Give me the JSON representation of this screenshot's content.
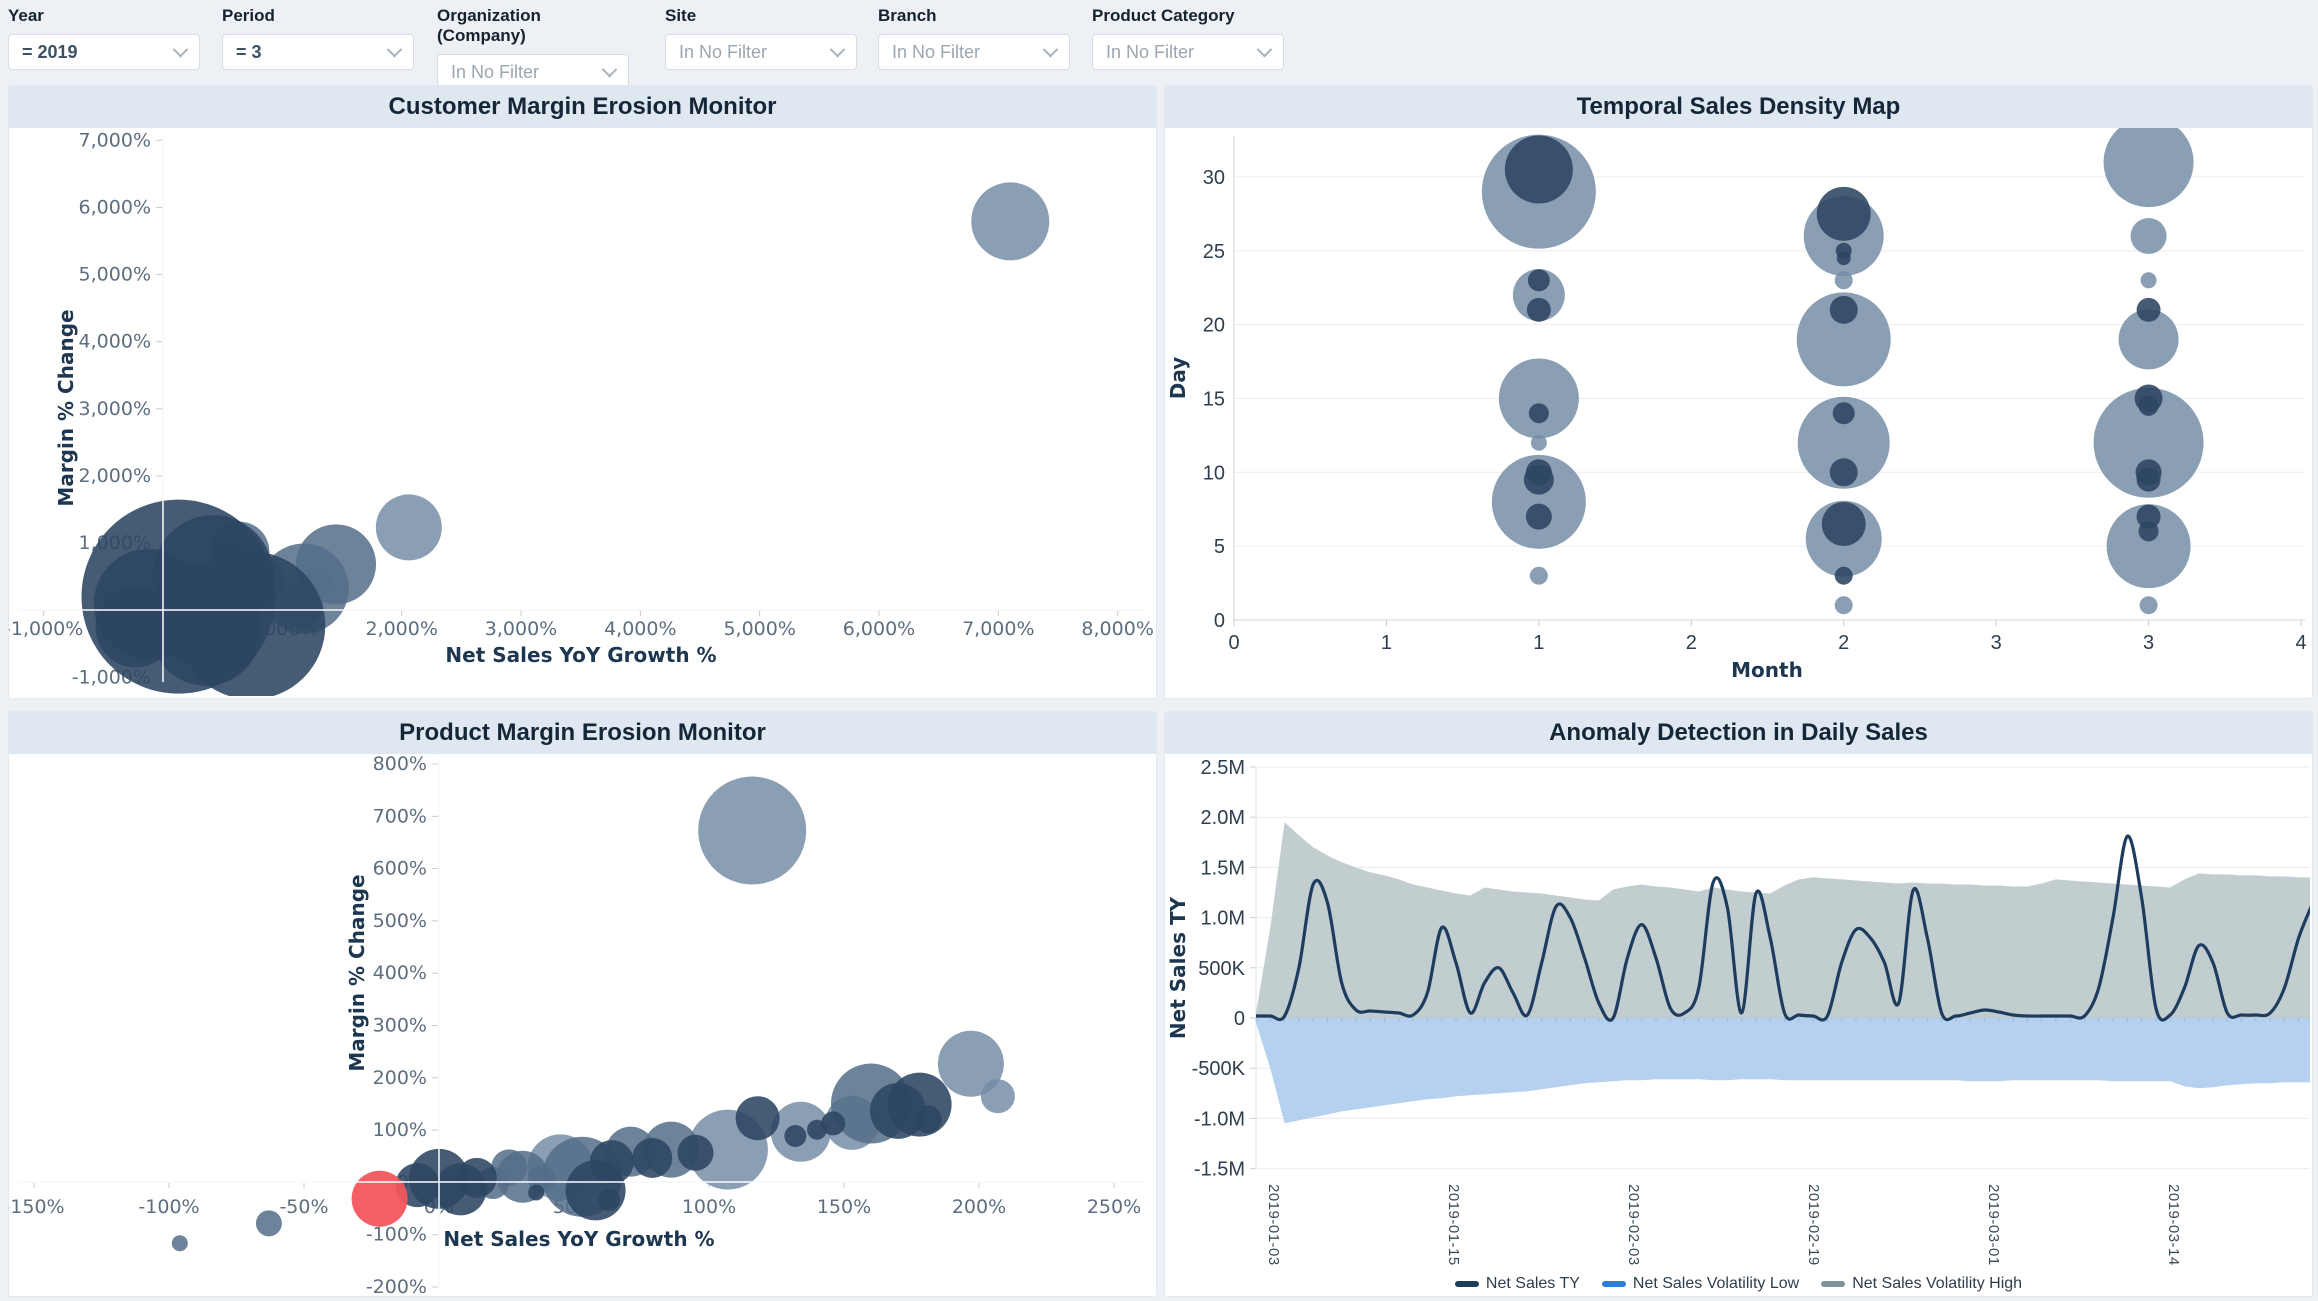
{
  "filters": [
    {
      "label": "Year",
      "value": "= 2019"
    },
    {
      "label": "Period",
      "value": "= 3"
    },
    {
      "label": "Organization (Company)",
      "value": "In No Filter"
    },
    {
      "label": "Site",
      "value": "In No Filter"
    },
    {
      "label": "Branch",
      "value": "In No Filter"
    },
    {
      "label": "Product Category",
      "value": "In No Filter"
    }
  ],
  "colors": {
    "page_bg": "#edf1f6",
    "header_bg": "#dfe8f1",
    "bubble_light": "#718aa3",
    "bubble_mid": "#546d88",
    "bubble_dark": "#2c4662",
    "bubble_red": "#f4555c",
    "line": "#1d3c5e",
    "band_high": "#b3c0c4",
    "band_low": "#a9c9ed",
    "legend_blue": "#2e7fd6",
    "legend_gray": "#7e9399"
  },
  "chart_data": [
    {
      "type": "scatter",
      "title": "Customer Margin Erosion Monitor",
      "xlabel": "Net Sales YoY Growth %",
      "ylabel": "Margin % Change",
      "xlim": [
        -1000,
        8000
      ],
      "ylim": [
        -1000,
        7000
      ],
      "xticks": [
        "-1,000%",
        "0%",
        "1,000%",
        "2,000%",
        "3,000%",
        "4,000%",
        "5,000%",
        "6,000%",
        "7,000%",
        "8,000%"
      ],
      "yticks": [
        "7,000%",
        "6,000%",
        "5,000%",
        "4,000%",
        "3,000%",
        "2,000%",
        "1,000%",
        "0%",
        "-1,000%"
      ],
      "grid": false,
      "bubbles": [
        {
          "x": 2060,
          "y": 1230,
          "r": 33,
          "c": "light"
        },
        {
          "x": 1295,
          "y": 425,
          "r": 14,
          "c": "light"
        },
        {
          "x": 7100,
          "y": 5790,
          "r": 39,
          "c": "light"
        },
        {
          "x": 640,
          "y": 870,
          "r": 30,
          "c": "mid"
        },
        {
          "x": 1450,
          "y": 680,
          "r": 40,
          "c": "mid"
        },
        {
          "x": 1180,
          "y": 320,
          "r": 45,
          "c": "mid"
        },
        {
          "x": 800,
          "y": 430,
          "r": 26,
          "c": "mid"
        },
        {
          "x": 1160,
          "y": 70,
          "r": 22,
          "c": "mid"
        },
        {
          "x": 130,
          "y": 200,
          "r": 97,
          "c": "dark"
        },
        {
          "x": 740,
          "y": -230,
          "r": 74,
          "c": "dark"
        },
        {
          "x": -120,
          "y": 90,
          "r": 55,
          "c": "dark"
        },
        {
          "x": 420,
          "y": 520,
          "r": 60,
          "c": "dark"
        },
        {
          "x": 540,
          "y": 770,
          "r": 18,
          "c": "dark"
        },
        {
          "x": -230,
          "y": -260,
          "r": 40,
          "c": "dark"
        },
        {
          "x": 300,
          "y": -60,
          "r": 50,
          "c": "dark"
        },
        {
          "x": 360,
          "y": -310,
          "r": 55,
          "c": "dark"
        }
      ]
    },
    {
      "type": "scatter",
      "title": "Temporal Sales Density Map",
      "xlabel": "Month",
      "ylabel": "Day",
      "xlim": [
        0,
        4
      ],
      "ylim": [
        0,
        33
      ],
      "xticks": [
        "0",
        "1",
        "1",
        "2",
        "2",
        "3",
        "3",
        "4"
      ],
      "yticks": [
        "0",
        "5",
        "10",
        "15",
        "20",
        "25",
        "30"
      ],
      "grid": true,
      "bubbles": [
        {
          "x": 1,
          "y": 29,
          "r": 57,
          "c": "light"
        },
        {
          "x": 1,
          "y": 30.5,
          "r": 34,
          "c": "dark"
        },
        {
          "x": 1,
          "y": 22,
          "r": 26,
          "c": "light"
        },
        {
          "x": 1,
          "y": 23,
          "r": 11,
          "c": "dark"
        },
        {
          "x": 1,
          "y": 21,
          "r": 12,
          "c": "dark"
        },
        {
          "x": 1,
          "y": 15,
          "r": 40,
          "c": "light"
        },
        {
          "x": 1,
          "y": 14,
          "r": 10,
          "c": "dark"
        },
        {
          "x": 1,
          "y": 12,
          "r": 8,
          "c": "light"
        },
        {
          "x": 1,
          "y": 8,
          "r": 47,
          "c": "light"
        },
        {
          "x": 1,
          "y": 10,
          "r": 13,
          "c": "dark"
        },
        {
          "x": 1,
          "y": 9.5,
          "r": 15,
          "c": "dark"
        },
        {
          "x": 1,
          "y": 7,
          "r": 13,
          "c": "dark"
        },
        {
          "x": 1,
          "y": 3,
          "r": 9,
          "c": "light"
        },
        {
          "x": 2,
          "y": 26,
          "r": 40,
          "c": "light"
        },
        {
          "x": 2,
          "y": 27.5,
          "r": 27,
          "c": "dark"
        },
        {
          "x": 2,
          "y": 25,
          "r": 8,
          "c": "dark"
        },
        {
          "x": 2,
          "y": 24.5,
          "r": 7,
          "c": "dark"
        },
        {
          "x": 2,
          "y": 23,
          "r": 9,
          "c": "light"
        },
        {
          "x": 2,
          "y": 19,
          "r": 47,
          "c": "light"
        },
        {
          "x": 2,
          "y": 21,
          "r": 14,
          "c": "dark"
        },
        {
          "x": 2,
          "y": 12,
          "r": 46,
          "c": "light"
        },
        {
          "x": 2,
          "y": 14,
          "r": 11,
          "c": "dark"
        },
        {
          "x": 2,
          "y": 10,
          "r": 14,
          "c": "dark"
        },
        {
          "x": 2,
          "y": 5.5,
          "r": 38,
          "c": "light"
        },
        {
          "x": 2,
          "y": 6.5,
          "r": 22,
          "c": "dark"
        },
        {
          "x": 2,
          "y": 3,
          "r": 9,
          "c": "dark"
        },
        {
          "x": 2,
          "y": 1,
          "r": 9,
          "c": "light"
        },
        {
          "x": 3,
          "y": 31,
          "r": 45,
          "c": "light"
        },
        {
          "x": 3,
          "y": 26,
          "r": 18,
          "c": "light"
        },
        {
          "x": 3,
          "y": 23,
          "r": 8,
          "c": "light"
        },
        {
          "x": 3,
          "y": 19,
          "r": 30,
          "c": "light"
        },
        {
          "x": 3,
          "y": 21,
          "r": 12,
          "c": "dark"
        },
        {
          "x": 3,
          "y": 12,
          "r": 55,
          "c": "light"
        },
        {
          "x": 3,
          "y": 15,
          "r": 14,
          "c": "dark"
        },
        {
          "x": 3,
          "y": 14.5,
          "r": 10,
          "c": "dark"
        },
        {
          "x": 3,
          "y": 10,
          "r": 13,
          "c": "dark"
        },
        {
          "x": 3,
          "y": 9.5,
          "r": 12,
          "c": "dark"
        },
        {
          "x": 3,
          "y": 5,
          "r": 42,
          "c": "light"
        },
        {
          "x": 3,
          "y": 7,
          "r": 12,
          "c": "dark"
        },
        {
          "x": 3,
          "y": 6,
          "r": 10,
          "c": "dark"
        },
        {
          "x": 3,
          "y": 1,
          "r": 9,
          "c": "light"
        }
      ]
    },
    {
      "type": "scatter",
      "title": "Product Margin Erosion Monitor",
      "xlabel": "Net Sales YoY Growth %",
      "ylabel": "Margin % Change",
      "xlim": [
        -150,
        250
      ],
      "ylim": [
        -200,
        800
      ],
      "xticks": [
        "-150%",
        "-100%",
        "-50%",
        "0%",
        "50%",
        "100%",
        "150%",
        "200%",
        "250%"
      ],
      "yticks": [
        "800%",
        "700%",
        "600%",
        "500%",
        "400%",
        "300%",
        "200%",
        "100%",
        "0%",
        "-100%",
        "-200%"
      ],
      "grid": false,
      "bubbles": [
        {
          "x": -96,
          "y": -117,
          "r": 8,
          "c": "mid"
        },
        {
          "x": -63,
          "y": -79,
          "r": 13,
          "c": "mid"
        },
        {
          "x": -22,
          "y": -32,
          "r": 28,
          "c": "red"
        },
        {
          "x": -8,
          "y": -6,
          "r": 22,
          "c": "dark"
        },
        {
          "x": 0,
          "y": 6,
          "r": 30,
          "c": "dark"
        },
        {
          "x": 8,
          "y": -14,
          "r": 26,
          "c": "dark"
        },
        {
          "x": 14,
          "y": 8,
          "r": 20,
          "c": "dark"
        },
        {
          "x": 20,
          "y": -2,
          "r": 16,
          "c": "mid"
        },
        {
          "x": 26,
          "y": 28,
          "r": 18,
          "c": "mid"
        },
        {
          "x": 31,
          "y": 10,
          "r": 26,
          "c": "mid"
        },
        {
          "x": 38,
          "y": 6,
          "r": 14,
          "c": "mid"
        },
        {
          "x": 36,
          "y": -20,
          "r": 8,
          "c": "dark"
        },
        {
          "x": 45,
          "y": 28,
          "r": 33,
          "c": "light"
        },
        {
          "x": 53,
          "y": 10,
          "r": 40,
          "c": "mid"
        },
        {
          "x": 58,
          "y": -16,
          "r": 30,
          "c": "dark"
        },
        {
          "x": 63,
          "y": -34,
          "r": 11,
          "c": "dark"
        },
        {
          "x": 64,
          "y": 38,
          "r": 22,
          "c": "dark"
        },
        {
          "x": 71,
          "y": 58,
          "r": 25,
          "c": "mid"
        },
        {
          "x": 79,
          "y": 46,
          "r": 20,
          "c": "dark"
        },
        {
          "x": 86,
          "y": 62,
          "r": 28,
          "c": "mid"
        },
        {
          "x": 95,
          "y": 56,
          "r": 18,
          "c": "dark"
        },
        {
          "x": 107,
          "y": 62,
          "r": 40,
          "c": "light"
        },
        {
          "x": 118,
          "y": 122,
          "r": 22,
          "c": "dark"
        },
        {
          "x": 116,
          "y": 672,
          "r": 54,
          "c": "light"
        },
        {
          "x": 134,
          "y": 96,
          "r": 30,
          "c": "light"
        },
        {
          "x": 132,
          "y": 88,
          "r": 11,
          "c": "dark"
        },
        {
          "x": 140,
          "y": 100,
          "r": 10,
          "c": "dark"
        },
        {
          "x": 146,
          "y": 112,
          "r": 12,
          "c": "dark"
        },
        {
          "x": 153,
          "y": 113,
          "r": 27,
          "c": "light"
        },
        {
          "x": 160,
          "y": 150,
          "r": 40,
          "c": "mid"
        },
        {
          "x": 170,
          "y": 136,
          "r": 28,
          "c": "dark"
        },
        {
          "x": 178,
          "y": 148,
          "r": 32,
          "c": "dark"
        },
        {
          "x": 181,
          "y": 120,
          "r": 14,
          "c": "dark"
        },
        {
          "x": 197,
          "y": 226,
          "r": 33,
          "c": "light"
        },
        {
          "x": 207,
          "y": 164,
          "r": 17,
          "c": "light"
        }
      ]
    },
    {
      "type": "line",
      "title": "Anomaly Detection in Daily Sales",
      "xlabel": "",
      "ylabel": "Net Sales TY",
      "ylim_label": [
        "-1.5M",
        "2.5M"
      ],
      "yticks": [
        "2.5M",
        "2.0M",
        "1.5M",
        "1.0M",
        "500K",
        "0",
        "-500K",
        "-1.0M",
        "-1.5M"
      ],
      "xticklabels": [
        "2019-01-03",
        "2019-01-15",
        "2019-02-03",
        "2019-02-19",
        "2019-03-01",
        "2019-03-14"
      ],
      "series": [
        {
          "name": "Net Sales TY",
          "unit": "M",
          "values": [
            0.02,
            0.02,
            0.02,
            0.5,
            1.33,
            1.15,
            0.35,
            0.08,
            0.07,
            0.06,
            0.05,
            0.03,
            0.25,
            0.9,
            0.55,
            0.05,
            0.35,
            0.5,
            0.25,
            0.03,
            0.55,
            1.11,
            1.0,
            0.6,
            0.15,
            0.0,
            0.6,
            0.93,
            0.6,
            0.1,
            0.05,
            0.3,
            1.35,
            1.1,
            0.05,
            1.24,
            0.8,
            0.05,
            0.03,
            0.02,
            0.02,
            0.55,
            0.88,
            0.8,
            0.55,
            0.15,
            1.27,
            0.8,
            0.05,
            0.02,
            0.05,
            0.08,
            0.06,
            0.03,
            0.02,
            0.02,
            0.02,
            0.02,
            0.02,
            0.3,
            1.0,
            1.81,
            1.2,
            0.1,
            0.03,
            0.3,
            0.72,
            0.55,
            0.05,
            0.03,
            0.03,
            0.05,
            0.3,
            0.8,
            1.15
          ]
        },
        {
          "name": "Net Sales Volatility High",
          "unit": "M",
          "values": [
            0.05,
            0.9,
            1.95,
            1.82,
            1.7,
            1.62,
            1.55,
            1.5,
            1.45,
            1.42,
            1.38,
            1.33,
            1.3,
            1.27,
            1.24,
            1.22,
            1.3,
            1.28,
            1.26,
            1.25,
            1.24,
            1.22,
            1.2,
            1.18,
            1.17,
            1.28,
            1.31,
            1.33,
            1.31,
            1.3,
            1.28,
            1.26,
            1.3,
            1.28,
            1.26,
            1.25,
            1.24,
            1.32,
            1.38,
            1.4,
            1.39,
            1.38,
            1.37,
            1.36,
            1.35,
            1.34,
            1.35,
            1.34,
            1.34,
            1.33,
            1.33,
            1.32,
            1.32,
            1.31,
            1.31,
            1.34,
            1.38,
            1.37,
            1.36,
            1.35,
            1.34,
            1.33,
            1.32,
            1.31,
            1.3,
            1.38,
            1.44,
            1.43,
            1.43,
            1.42,
            1.42,
            1.41,
            1.41,
            1.4,
            1.4
          ]
        },
        {
          "name": "Net Sales Volatility Low",
          "unit": "M",
          "values": [
            -0.05,
            -0.5,
            -1.05,
            -1.02,
            -0.99,
            -0.96,
            -0.93,
            -0.91,
            -0.89,
            -0.87,
            -0.85,
            -0.83,
            -0.81,
            -0.8,
            -0.78,
            -0.77,
            -0.76,
            -0.75,
            -0.74,
            -0.73,
            -0.71,
            -0.69,
            -0.67,
            -0.65,
            -0.64,
            -0.63,
            -0.62,
            -0.62,
            -0.61,
            -0.61,
            -0.61,
            -0.61,
            -0.62,
            -0.62,
            -0.61,
            -0.61,
            -0.61,
            -0.62,
            -0.62,
            -0.62,
            -0.62,
            -0.62,
            -0.62,
            -0.62,
            -0.62,
            -0.62,
            -0.62,
            -0.62,
            -0.62,
            -0.62,
            -0.63,
            -0.63,
            -0.63,
            -0.62,
            -0.62,
            -0.62,
            -0.62,
            -0.62,
            -0.62,
            -0.62,
            -0.63,
            -0.63,
            -0.63,
            -0.63,
            -0.63,
            -0.68,
            -0.7,
            -0.69,
            -0.67,
            -0.66,
            -0.65,
            -0.65,
            -0.64,
            -0.64,
            -0.64
          ]
        }
      ],
      "legend": [
        {
          "label": "Net Sales TY",
          "color": "#1d3c5e"
        },
        {
          "label": "Net Sales Volatility Low",
          "color": "#2e7fd6"
        },
        {
          "label": "Net Sales Volatility High",
          "color": "#7e9399"
        }
      ]
    }
  ]
}
